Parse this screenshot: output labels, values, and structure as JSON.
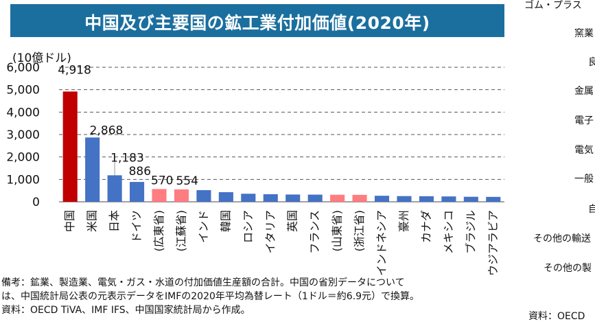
{
  "title": "中国及び主要国の鉱工業付加価値(2020年)",
  "unit_label": "(10億ドル)",
  "chart_data": {
    "type": "bar",
    "title": "中国及び主要国の鉱工業付加価値(2020年)",
    "ylabel": "(10億ドル)",
    "xlabel": "",
    "ylim": [
      0,
      6000
    ],
    "yticks": [
      0,
      1000,
      2000,
      3000,
      4000,
      5000,
      6000
    ],
    "ytick_labels": [
      "0",
      "1,000",
      "2,000",
      "3,000",
      "4,000",
      "5,000",
      "6,000"
    ],
    "grid": true,
    "categories": [
      "中国",
      "米国",
      "日本",
      "ドイツ",
      "(広東省)",
      "(江蘇省)",
      "インド",
      "韓国",
      "ロシア",
      "イタリア",
      "英国",
      "フランス",
      "(山東省)",
      "(浙江省)",
      "インドネシア",
      "豪州",
      "カナダ",
      "メキシコ",
      "ブラジル",
      "サウジアラビア"
    ],
    "values": [
      4918,
      2868,
      1183,
      886,
      570,
      554,
      520,
      430,
      360,
      340,
      325,
      320,
      315,
      310,
      270,
      255,
      250,
      240,
      225,
      220
    ],
    "bar_colors": [
      "#c00000",
      "#4472c4",
      "#4472c4",
      "#4472c4",
      "#ff7c80",
      "#ff7c80",
      "#4472c4",
      "#4472c4",
      "#4472c4",
      "#4472c4",
      "#4472c4",
      "#4472c4",
      "#ff7c80",
      "#ff7c80",
      "#4472c4",
      "#4472c4",
      "#4472c4",
      "#4472c4",
      "#4472c4",
      "#4472c4"
    ],
    "data_labels": [
      "4,918",
      "2,868",
      "1,183",
      "886",
      "570",
      "554",
      null,
      null,
      null,
      null,
      null,
      null,
      null,
      null,
      null,
      null,
      null,
      null,
      null,
      null
    ]
  },
  "notes": [
    "備考：鉱業、製造業、電気・ガス・水道の付加価値生産額の合計。中国の省別データについて",
    "は、中国統計局公表の元表示データをIMFの2020年平均為替レート（1ドル＝約6.9元）で換算。",
    "資料：OECD TiVA、IMF IFS、中国国家統計局から作成。"
  ],
  "right_panel": {
    "items": [
      "ゴム・プラス",
      "窯業",
      "良",
      "金属",
      "電子",
      "電気",
      "一般",
      "自",
      "その他の輸送",
      "その他の製"
    ],
    "source": "資料：OECD"
  }
}
